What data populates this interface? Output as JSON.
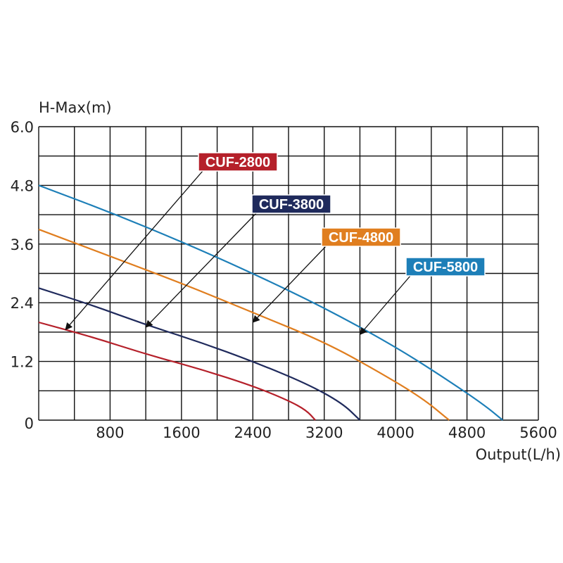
{
  "chart_data": {
    "type": "line",
    "ylabel": "H-Max(m)",
    "xlabel": "Output(L/h)",
    "xlim": [
      0,
      5600
    ],
    "ylim": [
      0,
      6.0
    ],
    "x_ticks": [
      800,
      1600,
      2400,
      3200,
      4000,
      4800,
      5600
    ],
    "x_tick_labels": [
      "800",
      "1600",
      "2400",
      "3200",
      "4000",
      "4800",
      "5600"
    ],
    "y_ticks": [
      0,
      1.2,
      2.4,
      3.6,
      4.8,
      6.0
    ],
    "y_tick_labels": [
      "0",
      "1.2",
      "2.4",
      "3.6",
      "4.8",
      "6.0"
    ],
    "grid": true,
    "series": [
      {
        "name": "CUF-2800",
        "color": "#b5202a",
        "points": [
          [
            0,
            2.0
          ],
          [
            600,
            1.7
          ],
          [
            1200,
            1.35
          ],
          [
            1800,
            1.05
          ],
          [
            2400,
            0.7
          ],
          [
            2800,
            0.4
          ],
          [
            3000,
            0.2
          ],
          [
            3100,
            0.0
          ]
        ]
      },
      {
        "name": "CUF-3800",
        "color": "#1f2a5c",
        "points": [
          [
            0,
            2.7
          ],
          [
            600,
            2.35
          ],
          [
            1200,
            1.95
          ],
          [
            1800,
            1.6
          ],
          [
            2400,
            1.2
          ],
          [
            3000,
            0.75
          ],
          [
            3400,
            0.35
          ],
          [
            3600,
            0.0
          ]
        ]
      },
      {
        "name": "CUF-4800",
        "color": "#e07e1f",
        "points": [
          [
            0,
            3.9
          ],
          [
            800,
            3.35
          ],
          [
            1600,
            2.8
          ],
          [
            2400,
            2.2
          ],
          [
            3200,
            1.6
          ],
          [
            3800,
            1.0
          ],
          [
            4300,
            0.45
          ],
          [
            4600,
            0.0
          ]
        ]
      },
      {
        "name": "CUF-5800",
        "color": "#1d7fb8",
        "points": [
          [
            0,
            4.8
          ],
          [
            800,
            4.25
          ],
          [
            1600,
            3.65
          ],
          [
            2400,
            3.0
          ],
          [
            3200,
            2.3
          ],
          [
            4000,
            1.5
          ],
          [
            4600,
            0.8
          ],
          [
            5000,
            0.3
          ],
          [
            5200,
            0.0
          ]
        ]
      }
    ],
    "annotations": [
      {
        "text": "CUF-2800",
        "series": "CUF-2800",
        "target": [
          300,
          1.85
        ]
      },
      {
        "text": "CUF-3800",
        "series": "CUF-3800",
        "target": [
          1200,
          1.9
        ]
      },
      {
        "text": "CUF-4800",
        "series": "CUF-4800",
        "target": [
          2400,
          2.0
        ]
      },
      {
        "text": "CUF-5800",
        "series": "CUF-5800",
        "target": [
          3600,
          1.75
        ]
      }
    ]
  }
}
